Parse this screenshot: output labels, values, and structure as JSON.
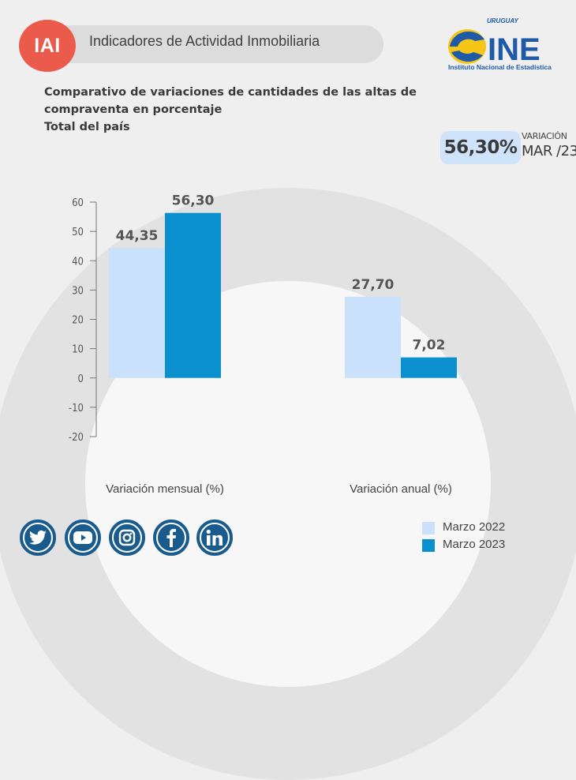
{
  "header": {
    "badge": "IAI",
    "title": "Indicadores de Actividad Inmobiliaria"
  },
  "logo": {
    "country": "URUGUAY",
    "name": "INE",
    "subtitle": "Instituto Nacional de Estadística"
  },
  "titles": {
    "line1": "Comparativo de variaciones de cantidades de las altas de",
    "line2": "compraventa en porcentaje",
    "line3": "Total del país"
  },
  "highlight": {
    "value": "56,30%",
    "label": "VARIACIÓN",
    "period": "MAR /23"
  },
  "social": [
    "twitter-icon",
    "youtube-icon",
    "instagram-icon",
    "facebook-icon",
    "linkedin-icon"
  ],
  "colors": {
    "series_2022": "#c9e1fb",
    "series_2023": "#0a8fcf",
    "accent": "#ea5b4b",
    "social": "#1a5b8d"
  },
  "chart_data": {
    "type": "bar",
    "categories": [
      "Variación mensual (%)",
      "Variación anual (%)"
    ],
    "series": [
      {
        "name": "Marzo 2022",
        "values": [
          44.35,
          27.7
        ],
        "labels": [
          "44,35",
          "27,70"
        ]
      },
      {
        "name": "Marzo 2023",
        "values": [
          56.3,
          7.02
        ],
        "labels": [
          "56,30",
          "7,02"
        ]
      }
    ],
    "yticks": [
      60,
      50,
      40,
      30,
      20,
      10,
      0,
      -10,
      -20
    ],
    "ylim": [
      -20,
      60
    ],
    "legend_position": "bottom-right",
    "grid": false
  }
}
